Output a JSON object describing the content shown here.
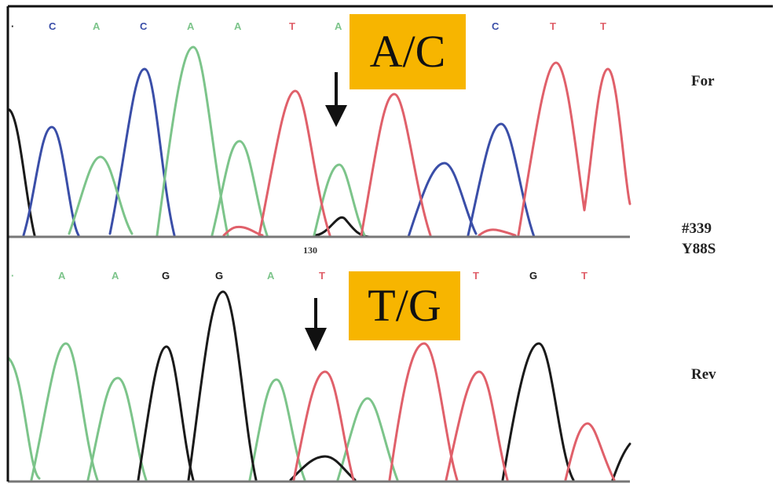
{
  "forward": {
    "label": "For",
    "bases": [
      "C",
      "A",
      "C",
      "A",
      "A",
      "T",
      "A",
      "",
      "",
      "C",
      "T",
      "T"
    ],
    "allele_call": "A/C"
  },
  "reverse": {
    "label": "Rev",
    "bases": [
      "A",
      "A",
      "G",
      "G",
      "A",
      "T",
      "",
      "",
      "T",
      "G",
      "T"
    ],
    "allele_call": "T/G",
    "position_number": "130"
  },
  "sample": {
    "id": "#339",
    "variant": "Y88S"
  },
  "colors": {
    "A": "#7cc48a",
    "C": "#3a4ea8",
    "G": "#1a1a1a",
    "T": "#e0606a",
    "allele_box": "#f7b500"
  }
}
